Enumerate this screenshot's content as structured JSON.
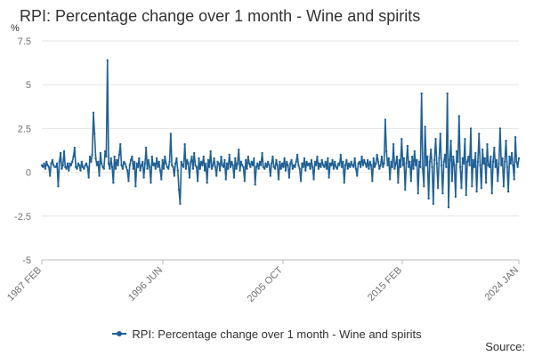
{
  "chart_data": {
    "type": "line",
    "title": "RPI: Percentage change over 1 month - Wine and spirits",
    "ylabel": "%",
    "xlabel": "",
    "ylim": [
      -5,
      7.5
    ],
    "yticks": [
      "7.5",
      "5",
      "2.5",
      "0",
      "-2.5",
      "-5"
    ],
    "yticks_values": [
      7.5,
      5,
      2.5,
      0,
      -2.5,
      -5
    ],
    "xticks": [
      "1987 FEB",
      "1996 JUN",
      "2005 OCT",
      "2015 FEB",
      "2024 JAN"
    ],
    "x_start": "1987 FEB",
    "x_end": "2024 JAN",
    "grid": true,
    "legend_position": "bottom",
    "series": [
      {
        "name": "RPI: Percentage change over 1 month - Wine and spirits",
        "color": "#206095",
        "values": [
          0.4,
          0.3,
          0.5,
          0.2,
          0.6,
          0.4,
          0.3,
          -0.2,
          0.5,
          0.7,
          0.4,
          0.3,
          0.3,
          0.5,
          -0.8,
          0.6,
          1.1,
          0.2,
          0.4,
          1.2,
          0.3,
          0.2,
          0.5,
          0.1,
          0.5,
          0.4,
          0.6,
          0.9,
          1.4,
          0.3,
          0.2,
          0.5,
          0.4,
          0.1,
          0.6,
          0.3,
          0.2,
          0.4,
          0.5,
          0.3,
          -0.3,
          0.9,
          0.6,
          1.0,
          3.4,
          2.2,
          0.8,
          0.4,
          0.6,
          -0.2,
          1.1,
          0.5,
          0.3,
          0.2,
          1.2,
          0.9,
          6.4,
          0.5,
          0.2,
          0.8,
          0.3,
          -0.6,
          0.9,
          0.2,
          0.7,
          0.4,
          1.0,
          1.6,
          0.4,
          0.2,
          0.6,
          0.5,
          0.3,
          0.1,
          -0.5,
          0.4,
          0.7,
          0.9,
          0.2,
          0.6,
          -0.8,
          0.5,
          0.3,
          0.8,
          0.1,
          0.4,
          0.6,
          -0.3,
          0.5,
          1.4,
          0.2,
          0.7,
          0.3,
          -0.6,
          0.9,
          0.4,
          0.5,
          0.2,
          0.8,
          0.3,
          0.6,
          0.1,
          -0.4,
          0.7,
          0.2,
          0.9,
          0.5,
          0.3,
          0.2,
          0.6,
          2.2,
          0.4,
          0.3,
          -0.2,
          0.5,
          0.8,
          0.1,
          -1.0,
          -1.8,
          0.6,
          0.4,
          0.3,
          1.6,
          0.2,
          0.7,
          0.5,
          -0.3,
          0.6,
          0.9,
          0.2,
          1.1,
          0.4,
          0.3,
          -0.5,
          0.8,
          0.2,
          0.6,
          0.4,
          0.9,
          0.1,
          0.5,
          -0.6,
          0.7,
          0.3,
          1.2,
          0.2,
          0.4,
          0.8,
          0.3,
          -0.2,
          0.6,
          0.5,
          0.1,
          0.9,
          0.4,
          0.3,
          0.7,
          -0.4,
          0.5,
          0.2,
          1.0,
          0.3,
          0.6,
          0.4,
          -0.3,
          0.8,
          0.2,
          0.5,
          1.3,
          0.1,
          0.6,
          0.4,
          0.3,
          -0.5,
          0.7,
          0.2,
          0.9,
          0.5,
          0.3,
          0.6,
          0.4,
          0.8,
          -0.7,
          0.3,
          0.5,
          0.2,
          0.6,
          0.4,
          1.1,
          0.3,
          0.2,
          0.5,
          0.3,
          0.6,
          0.4,
          -0.2,
          0.5,
          0.9,
          0.3,
          0.2,
          0.7,
          0.4,
          -0.4,
          0.6,
          0.2,
          0.5,
          0.3,
          0.8,
          0.1,
          0.6,
          0.4,
          -0.3,
          0.5,
          0.7,
          0.2,
          0.4,
          0.3,
          0.6,
          1.0,
          0.4,
          0.2,
          -0.5,
          0.5,
          0.3,
          0.8,
          0.1,
          0.6,
          0.4,
          0.5,
          0.2,
          0.7,
          0.3,
          -0.4,
          0.6,
          0.4,
          0.9,
          0.2,
          0.5,
          0.3,
          0.7,
          0.4,
          0.3,
          0.6,
          0.2,
          0.8,
          -0.3,
          0.5,
          0.4,
          0.7,
          0.2,
          0.6,
          0.3,
          0.2,
          0.5,
          0.4,
          1.0,
          0.3,
          0.6,
          -0.6,
          0.4,
          0.7,
          0.2,
          0.5,
          0.3,
          0.6,
          0.4,
          0.3,
          0.8,
          0.2,
          -0.2,
          0.5,
          0.6,
          0.3,
          0.9,
          0.4,
          0.7,
          0.5,
          0.3,
          0.7,
          0.2,
          0.6,
          0.4,
          -0.5,
          0.8,
          0.3,
          0.5,
          1.0,
          0.6,
          0.2,
          0.4,
          0.9,
          0.3,
          0.5,
          3.0,
          1.2,
          0.4,
          0.8,
          -0.4,
          0.6,
          0.3,
          1.6,
          0.2,
          0.5,
          0.9,
          -0.6,
          0.7,
          0.3,
          1.9,
          0.4,
          0.8,
          -1.0,
          0.5,
          1.5,
          0.3,
          0.6,
          -0.5,
          0.9,
          0.2,
          1.2,
          0.4,
          0.7,
          -1.2,
          0.6,
          0.3,
          4.5,
          0.2,
          -0.8,
          2.6,
          0.4,
          0.9,
          -1.5,
          0.6,
          1.3,
          0.3,
          -1.8,
          0.7,
          1.9,
          0.5,
          -0.9,
          0.8,
          2.2,
          0.4,
          -1.2,
          0.6,
          1.0,
          0.3,
          4.5,
          -2.0,
          0.7,
          1.8,
          -0.5,
          0.9,
          0.4,
          -1.4,
          1.2,
          0.6,
          3.2,
          0.3,
          -0.9,
          0.8,
          0.5,
          1.9,
          -1.3,
          0.6,
          0.9,
          0.4,
          2.5,
          -0.8,
          0.7,
          0.3,
          1.1,
          -1.1,
          0.6,
          2.2,
          0.4,
          -0.9,
          1.3,
          0.5,
          0.8,
          -0.6,
          1.6,
          0.4,
          0.3,
          0.9,
          -1.2,
          0.6,
          1.4,
          0.3,
          0.7,
          -0.5,
          0.5,
          2.5,
          0.4,
          0.8,
          -0.8,
          0.6,
          1.8,
          0.3,
          -1.1,
          0.9,
          0.5,
          1.1,
          0.4,
          -0.4,
          2.0,
          0.6,
          0.3,
          0.8
        ]
      }
    ]
  },
  "source_label": "Source:"
}
